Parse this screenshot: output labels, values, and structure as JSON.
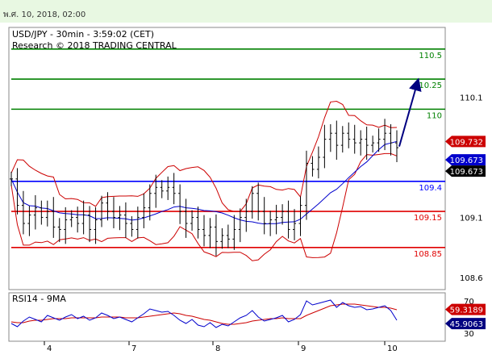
{
  "header": {
    "date": "พ.ศ. 10, 2018, 02:00"
  },
  "colors": {
    "resistance": "#008000",
    "support": "#e00000",
    "pivot": "#0000ff",
    "arrow": "#000080",
    "price": "#000000",
    "bollinger": "#cc0000",
    "ma": "#0000cc",
    "rsi": "#0000cc",
    "rsi_ma": "#cc0000"
  },
  "chart_data": [
    {
      "type": "line",
      "subtype": "ohlc",
      "title": "USD/JPY - 30min - 3:59:02 (CET)",
      "subtitle": "Research © 2018 TRADING CENTRAL",
      "x_tick_labels": [
        "4",
        "7",
        "8",
        "9",
        "10"
      ],
      "y_ticks": [
        108.6,
        109.1,
        110.1
      ],
      "ylim": [
        108.5,
        110.68
      ],
      "levels": [
        {
          "value": 110.5,
          "label": "110.5",
          "kind": "resistance"
        },
        {
          "value": 110.25,
          "label": "110.25",
          "kind": "resistance"
        },
        {
          "value": 110.0,
          "label": "110",
          "kind": "resistance"
        },
        {
          "value": 109.4,
          "label": "109.4",
          "kind": "pivot"
        },
        {
          "value": 109.15,
          "label": "109.15",
          "kind": "support"
        },
        {
          "value": 108.85,
          "label": "108.85",
          "kind": "support"
        }
      ],
      "price_badges": [
        {
          "label": "109.732",
          "value": 109.732,
          "color": "#cc0000"
        },
        {
          "label": "109.673",
          "value": 109.673,
          "color": "#0000cc"
        },
        {
          "label": "109.673",
          "value": 109.673,
          "color": "#000000"
        }
      ],
      "forecast_arrow": {
        "from": 109.69,
        "to": 110.25
      },
      "close_series": [
        109.42,
        109.2,
        109.05,
        109.12,
        109.18,
        109.1,
        109.15,
        109.02,
        109.0,
        109.08,
        109.1,
        109.05,
        109.12,
        109.0,
        109.08,
        109.22,
        109.15,
        109.1,
        109.12,
        109.05,
        109.0,
        109.1,
        109.18,
        109.3,
        109.35,
        109.32,
        109.35,
        109.3,
        109.15,
        109.05,
        109.1,
        109.0,
        108.95,
        109.02,
        108.9,
        108.95,
        108.92,
        109.0,
        109.1,
        109.15,
        109.3,
        109.15,
        109.05,
        109.08,
        109.1,
        109.15,
        109.0,
        109.05,
        109.2,
        109.55,
        109.5,
        109.6,
        109.75,
        109.8,
        109.7,
        109.8,
        109.75,
        109.72,
        109.75,
        109.7,
        109.72,
        109.75,
        109.8,
        109.72,
        109.68
      ]
    },
    {
      "type": "line",
      "title": "RSI14 - 9MA",
      "y_ticks": [
        30,
        70
      ],
      "ylim": [
        20,
        80
      ],
      "badges": [
        {
          "label": "59.3189",
          "value": 59.3189,
          "color": "#cc0000"
        },
        {
          "label": "45.9063",
          "value": 45.9063,
          "color": "#000080"
        }
      ],
      "rsi_series": [
        42,
        38,
        45,
        50,
        47,
        44,
        52,
        49,
        46,
        50,
        53,
        48,
        51,
        46,
        49,
        55,
        52,
        48,
        50,
        47,
        44,
        49,
        54,
        60,
        58,
        56,
        57,
        52,
        46,
        42,
        47,
        40,
        38,
        43,
        37,
        41,
        39,
        44,
        49,
        52,
        58,
        50,
        45,
        47,
        49,
        52,
        44,
        47,
        53,
        70,
        65,
        67,
        69,
        71,
        62,
        68,
        64,
        62,
        63,
        59,
        60,
        62,
        64,
        58,
        46
      ],
      "rsi_ma_series": [
        44,
        43,
        43,
        45,
        46,
        46,
        47,
        48,
        48,
        48,
        49,
        49,
        49,
        49,
        49,
        50,
        50,
        50,
        50,
        49,
        49,
        49,
        50,
        51,
        52,
        53,
        54,
        55,
        54,
        52,
        51,
        49,
        47,
        46,
        44,
        42,
        41,
        41,
        42,
        43,
        45,
        46,
        47,
        48,
        48,
        49,
        48,
        48,
        48,
        52,
        55,
        58,
        61,
        64,
        65,
        66,
        66,
        66,
        65,
        64,
        63,
        62,
        62,
        61,
        59
      ]
    }
  ]
}
